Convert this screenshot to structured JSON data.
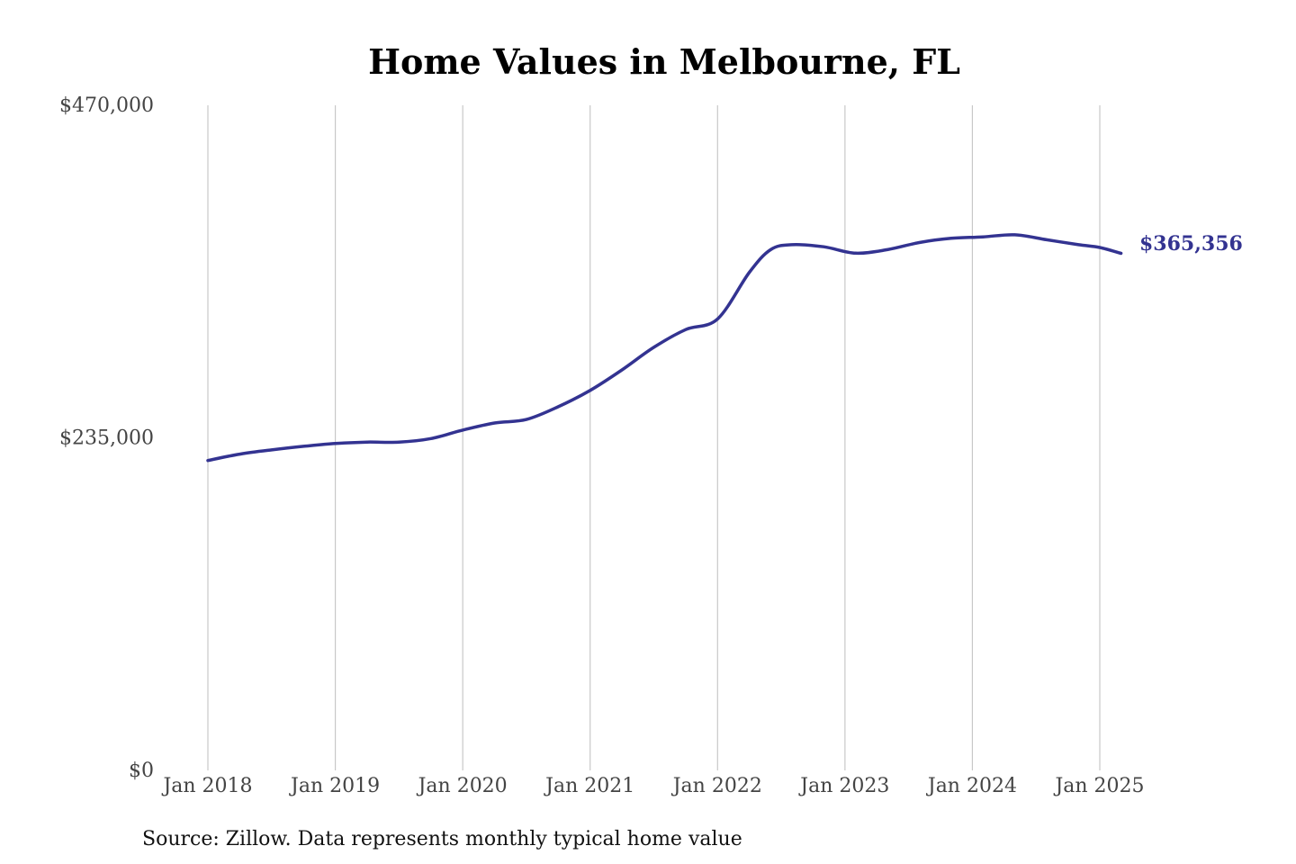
{
  "chart_data": {
    "type": "line",
    "title": "Home Values in Melbourne, FL",
    "source_note": "Source: Zillow. Data represents monthly typical home value",
    "y_ticks": [
      {
        "value": 0,
        "label": "$0"
      },
      {
        "value": 235000,
        "label": "$235,000"
      },
      {
        "value": 470000,
        "label": "$470,000"
      }
    ],
    "x_ticks": [
      {
        "date": "2018-01",
        "label": "Jan 2018"
      },
      {
        "date": "2019-01",
        "label": "Jan 2019"
      },
      {
        "date": "2020-01",
        "label": "Jan 2020"
      },
      {
        "date": "2021-01",
        "label": "Jan 2021"
      },
      {
        "date": "2022-01",
        "label": "Jan 2022"
      },
      {
        "date": "2023-01",
        "label": "Jan 2023"
      },
      {
        "date": "2024-01",
        "label": "Jan 2024"
      },
      {
        "date": "2025-01",
        "label": "Jan 2025"
      }
    ],
    "ylim": [
      0,
      470000
    ],
    "xlim": [
      "2018-01",
      "2025-01"
    ],
    "grid": "vertical",
    "line_color": "#333391",
    "end_label": "$365,356",
    "series": [
      {
        "points": [
          [
            "2018-01",
            219000
          ],
          [
            "2018-04",
            223500
          ],
          [
            "2018-07",
            226500
          ],
          [
            "2018-10",
            229000
          ],
          [
            "2019-01",
            231000
          ],
          [
            "2019-04",
            232000
          ],
          [
            "2019-07",
            232000
          ],
          [
            "2019-10",
            234500
          ],
          [
            "2020-01",
            240500
          ],
          [
            "2020-04",
            245500
          ],
          [
            "2020-07",
            248000
          ],
          [
            "2020-10",
            257000
          ],
          [
            "2021-01",
            268500
          ],
          [
            "2021-04",
            283000
          ],
          [
            "2021-07",
            299000
          ],
          [
            "2021-10",
            311500
          ],
          [
            "2022-01",
            319000
          ],
          [
            "2022-04",
            352000
          ],
          [
            "2022-06",
            368000
          ],
          [
            "2022-08",
            371500
          ],
          [
            "2022-11",
            370000
          ],
          [
            "2023-02",
            365500
          ],
          [
            "2023-05",
            368000
          ],
          [
            "2023-08",
            373000
          ],
          [
            "2023-11",
            376000
          ],
          [
            "2024-02",
            377000
          ],
          [
            "2024-05",
            378500
          ],
          [
            "2024-08",
            375000
          ],
          [
            "2024-11",
            371500
          ],
          [
            "2025-01",
            369500
          ],
          [
            "2025-03",
            365356
          ]
        ]
      }
    ]
  }
}
